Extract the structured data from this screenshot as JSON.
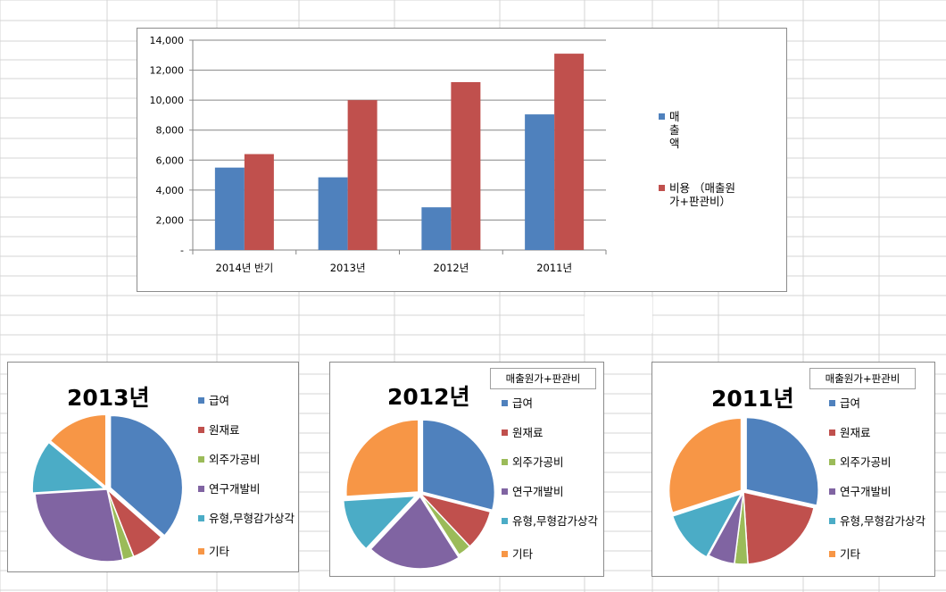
{
  "colors": {
    "blue": "#4f81bd",
    "red": "#c0504d",
    "green": "#9bbb59",
    "purple": "#8064a2",
    "teal": "#4bacc6",
    "orange": "#f79646"
  },
  "bar_legend": [
    {
      "label": "매출액",
      "color": "#4f81bd"
    },
    {
      "label": "비용 （매출원가+판관비）",
      "color": "#c0504d"
    }
  ],
  "pie_legend": [
    {
      "label": "급여",
      "color": "#4f81bd"
    },
    {
      "label": "원재료",
      "color": "#c0504d"
    },
    {
      "label": "외주가공비",
      "color": "#9bbb59"
    },
    {
      "label": "연구개발비",
      "color": "#8064a2"
    },
    {
      "label": "유형,무형감가상각",
      "color": "#4bacc6"
    },
    {
      "label": "기타",
      "color": "#f79646"
    }
  ],
  "chart_data": [
    {
      "type": "bar",
      "categories": [
        "2014년 반기",
        "2013년",
        "2012년",
        "2011년"
      ],
      "series": [
        {
          "name": "매출액",
          "values": [
            5500,
            4850,
            2850,
            9050
          ],
          "color": "#4f81bd"
        },
        {
          "name": "비용 （매출원가+판관비）",
          "values": [
            6400,
            10000,
            11200,
            13100
          ],
          "color": "#c0504d"
        }
      ],
      "yticks": [
        "-",
        "2,000",
        "4,000",
        "6,000",
        "8,000",
        "10,000",
        "12,000",
        "14,000"
      ],
      "ylim": [
        0,
        14000
      ],
      "grid": true,
      "legend": "right"
    },
    {
      "type": "pie",
      "title": "2013년",
      "labels": [
        "급여",
        "원재료",
        "외주가공비",
        "연구개발비",
        "유형,무형감가상각",
        "기타"
      ],
      "values": [
        36.5,
        7.5,
        2.5,
        27.5,
        12,
        14
      ],
      "legend": "right"
    },
    {
      "type": "pie",
      "title": "2012년",
      "badge": "매출원가+판관비",
      "labels": [
        "급여",
        "원재료",
        "외주가공비",
        "연구개발비",
        "유형,무형감가상각",
        "기타"
      ],
      "values": [
        29,
        9,
        3,
        21,
        12,
        26
      ],
      "legend": "right"
    },
    {
      "type": "pie",
      "title": "2011년",
      "badge": "매출원가+판관비",
      "labels": [
        "급여",
        "원재료",
        "외주가공비",
        "연구개발비",
        "유형,무형감가상각",
        "기타"
      ],
      "values": [
        28.5,
        20.5,
        3,
        6,
        12,
        30
      ],
      "legend": "right"
    }
  ]
}
